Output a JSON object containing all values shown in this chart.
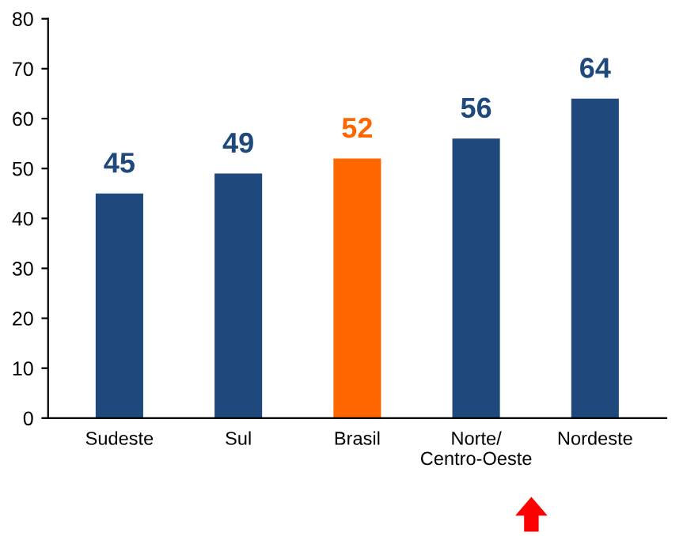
{
  "chart_data": {
    "type": "bar",
    "categories": [
      "Sudeste",
      "Sul",
      "Brasil",
      "Norte/\nCentro-Oeste",
      "Nordeste"
    ],
    "values": [
      45,
      49,
      52,
      56,
      64
    ],
    "colors": [
      "#1f497d",
      "#1f497d",
      "#ff6600",
      "#1f497d",
      "#1f497d"
    ],
    "ylim": [
      0,
      80
    ],
    "yticks": [
      0,
      10,
      20,
      30,
      40,
      50,
      60,
      70,
      80
    ],
    "data_labels": true,
    "grid": false,
    "legend": false
  }
}
